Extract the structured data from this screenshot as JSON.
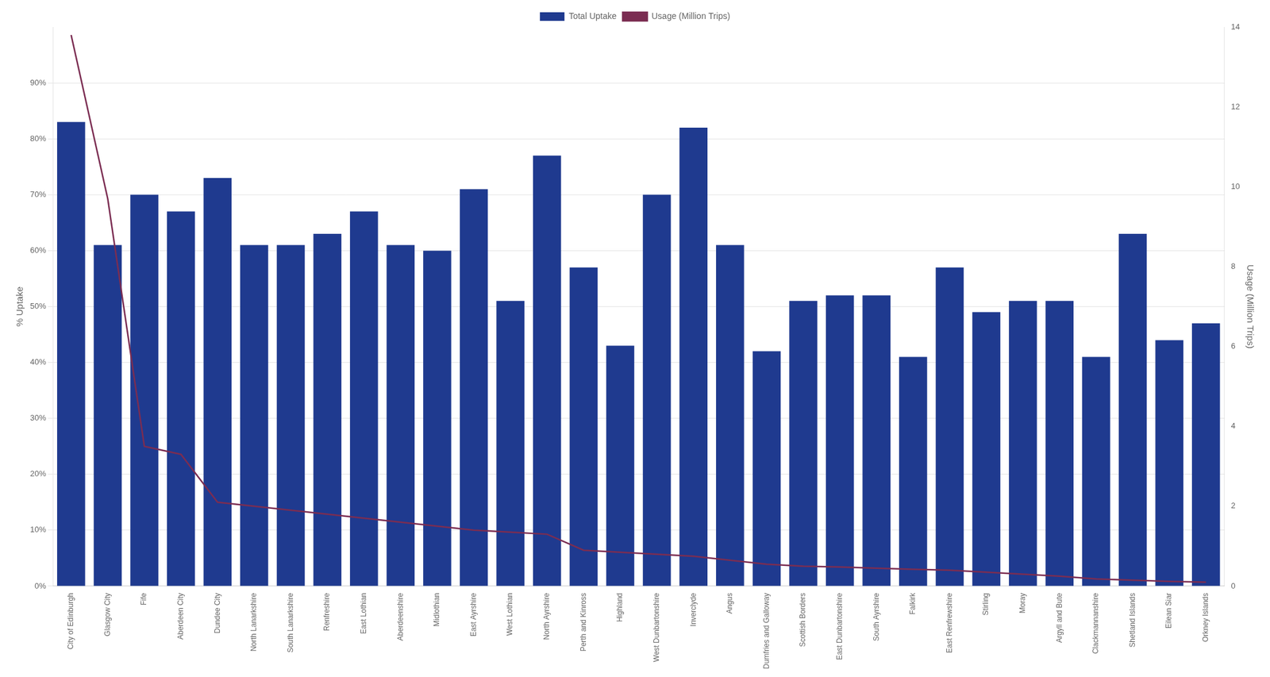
{
  "chart_data": {
    "type": "bar",
    "categories": [
      "City of Edinburgh",
      "Glasgow City",
      "Fife",
      "Aberdeen City",
      "Dundee City",
      "North Lanarkshire",
      "South Lanarkshire",
      "Renfreshire",
      "East Lothian",
      "Aberdeenshire",
      "Midlothian",
      "East Ayrshire",
      "West Lothian",
      "North Ayrshire",
      "Perth and Kinross",
      "Highland",
      "West Dunbartonshire",
      "Inverclyde",
      "Angus",
      "Dumfries and Galloway",
      "Scottish Borders",
      "East Dunbartonshire",
      "South Ayrshire",
      "Falkirk",
      "East Renfrewshire",
      "Stirling",
      "Moray",
      "Argyll and Bute",
      "Clackmannanshire",
      "Shetland Islands",
      "Eilean Siar",
      "Orkney Islands"
    ],
    "series": [
      {
        "name": "Total Uptake",
        "type": "bar",
        "color": "#1f3a8f",
        "values": [
          83,
          61,
          70,
          67,
          73,
          61,
          61,
          63,
          67,
          61,
          60,
          71,
          51,
          77,
          57,
          43,
          70,
          82,
          61,
          42,
          51,
          52,
          52,
          41,
          57,
          49,
          51,
          51,
          41,
          63,
          44,
          47
        ]
      },
      {
        "name": "Usage (Million Trips)",
        "type": "line",
        "color": "#7b2d52",
        "axis": "y2",
        "values": [
          13.8,
          9.7,
          3.5,
          3.3,
          2.1,
          2.0,
          1.9,
          1.8,
          1.7,
          1.6,
          1.5,
          1.4,
          1.35,
          1.3,
          0.9,
          0.85,
          0.8,
          0.75,
          0.65,
          0.55,
          0.5,
          0.48,
          0.45,
          0.42,
          0.4,
          0.35,
          0.3,
          0.25,
          0.18,
          0.15,
          0.12,
          0.1
        ]
      }
    ],
    "ylabel": "% Uptake",
    "y2label": "Usage (Million Trips)",
    "ylim": [
      0,
      100
    ],
    "yticks": [
      {
        "value": 0,
        "label": "0%"
      },
      {
        "value": 10,
        "label": "10%"
      },
      {
        "value": 20,
        "label": "20%"
      },
      {
        "value": 30,
        "label": "30%"
      },
      {
        "value": 40,
        "label": "40%"
      },
      {
        "value": 50,
        "label": "50%"
      },
      {
        "value": 60,
        "label": "60%"
      },
      {
        "value": 70,
        "label": "70%"
      },
      {
        "value": 80,
        "label": "80%"
      },
      {
        "value": 90,
        "label": "90%"
      }
    ],
    "y2lim": [
      0,
      14
    ],
    "y2ticks": [
      0,
      2,
      4,
      6,
      8,
      10,
      12,
      14
    ],
    "grid": true,
    "legend": "top"
  }
}
